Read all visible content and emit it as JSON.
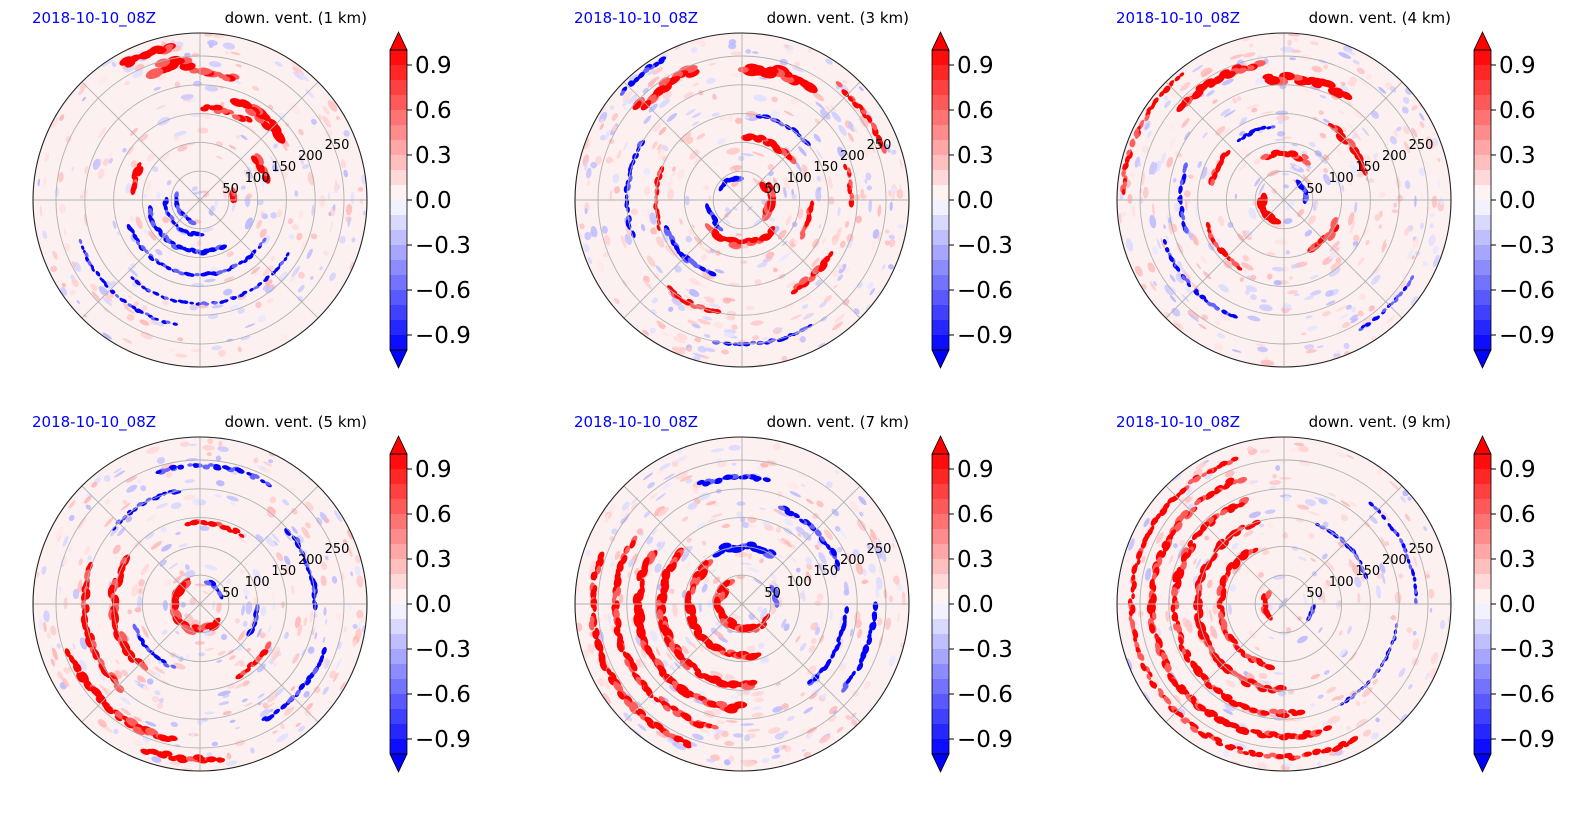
{
  "figure": {
    "colors": {
      "date_label": "#0000ff",
      "title": "#000000",
      "positive": "#ff0000",
      "negative": "#0000ff",
      "grid": "#b0b0b0"
    }
  },
  "chart_data": [
    {
      "type": "heatmap",
      "projection": "polar",
      "date_label": "2018-10-10_08Z",
      "title": "down. vent. (1 km)",
      "radial_ticks": [
        "50",
        "100",
        "150",
        "200",
        "250"
      ],
      "colorbar": {
        "min": -1.0,
        "max": 1.0,
        "levels": 20,
        "extend": "both",
        "cmap": "bwr",
        "ticks": [
          "0.9",
          "0.6",
          "0.3",
          "0.0",
          "−0.3",
          "−0.6",
          "−0.9"
        ]
      },
      "features": {
        "positive_arcs": [
          [
            2,
            15,
            60,
            8
          ],
          [
            20,
            40,
            120,
            10
          ],
          [
            40,
            70,
            180,
            14
          ],
          [
            75,
            95,
            220,
            10
          ],
          [
            95,
            110,
            240,
            14
          ],
          [
            100,
            120,
            270,
            10
          ],
          [
            150,
            175,
            120,
            8
          ],
          [
            110,
            130,
            300,
            10
          ],
          [
            60,
            90,
            160,
            8
          ]
        ],
        "negative_arcs": [
          [
            170,
            260,
            40,
            6
          ],
          [
            180,
            280,
            60,
            5
          ],
          [
            190,
            300,
            90,
            6
          ],
          [
            200,
            330,
            130,
            4
          ],
          [
            230,
            330,
            180,
            3
          ],
          [
            200,
            260,
            220,
            3
          ]
        ],
        "noise": 0.35
      }
    },
    {
      "type": "heatmap",
      "projection": "polar",
      "date_label": "2018-10-10_08Z",
      "title": "down. vent. (3 km)",
      "radial_ticks": [
        "50",
        "100",
        "150",
        "200",
        "250"
      ],
      "colorbar": {
        "min": -1.0,
        "max": 1.0,
        "levels": 20,
        "extend": "both",
        "cmap": "bwr",
        "ticks": [
          "0.9",
          "0.6",
          "0.3",
          "0.0",
          "−0.3",
          "−0.6",
          "−0.9"
        ]
      },
      "features": {
        "positive_arcs": [
          [
            330,
            40,
            50,
            12
          ],
          [
            220,
            320,
            75,
            10
          ],
          [
            40,
            90,
            110,
            8
          ],
          [
            330,
            360,
            120,
            6
          ],
          [
            300,
            330,
            180,
            8
          ],
          [
            0,
            20,
            190,
            6
          ],
          [
            60,
            90,
            230,
            14
          ],
          [
            110,
            140,
            240,
            12
          ],
          [
            160,
            200,
            150,
            5
          ],
          [
            230,
            260,
            200,
            6
          ],
          [
            20,
            50,
            260,
            6
          ]
        ],
        "negative_arcs": [
          [
            100,
            160,
            40,
            8
          ],
          [
            190,
            240,
            60,
            6
          ],
          [
            200,
            250,
            140,
            6
          ],
          [
            150,
            200,
            200,
            5
          ],
          [
            40,
            80,
            150,
            4
          ],
          [
            260,
            300,
            250,
            4
          ],
          [
            120,
            140,
            280,
            5
          ]
        ],
        "noise": 0.45
      }
    },
    {
      "type": "heatmap",
      "projection": "polar",
      "date_label": "2018-10-10_08Z",
      "title": "down. vent. (4 km)",
      "radial_ticks": [
        "50",
        "100",
        "150",
        "200",
        "250"
      ],
      "colorbar": {
        "min": -1.0,
        "max": 1.0,
        "levels": 20,
        "extend": "both",
        "cmap": "bwr",
        "ticks": [
          "0.9",
          "0.6",
          "0.3",
          "0.0",
          "−0.3",
          "−0.6",
          "−0.9"
        ]
      },
      "features": {
        "positive_arcs": [
          [
            180,
            260,
            40,
            10
          ],
          [
            60,
            120,
            80,
            8
          ],
          [
            300,
            340,
            100,
            10
          ],
          [
            20,
            60,
            150,
            8
          ],
          [
            60,
            100,
            210,
            12
          ],
          [
            100,
            140,
            240,
            10
          ],
          [
            140,
            170,
            130,
            6
          ],
          [
            200,
            240,
            140,
            6
          ],
          [
            130,
            180,
            280,
            5
          ]
        ],
        "negative_arcs": [
          [
            0,
            60,
            40,
            8
          ],
          [
            160,
            200,
            180,
            5
          ],
          [
            200,
            250,
            220,
            4
          ],
          [
            100,
            130,
            130,
            4
          ],
          [
            300,
            330,
            260,
            3
          ]
        ],
        "noise": 0.45
      }
    },
    {
      "type": "heatmap",
      "projection": "polar",
      "date_label": "2018-10-10_08Z",
      "title": "down. vent. (5 km)",
      "radial_ticks": [
        "50",
        "100",
        "150",
        "200",
        "250"
      ],
      "colorbar": {
        "min": -1.0,
        "max": 1.0,
        "levels": 20,
        "extend": "both",
        "cmap": "bwr",
        "ticks": [
          "0.9",
          "0.6",
          "0.3",
          "0.0",
          "−0.3",
          "−0.6",
          "−0.9"
        ]
      },
      "features": {
        "positive_arcs": [
          [
            120,
            320,
            45,
            10
          ],
          [
            150,
            230,
            150,
            10
          ],
          [
            160,
            230,
            200,
            8
          ],
          [
            200,
            260,
            240,
            10
          ],
          [
            250,
            280,
            270,
            8
          ],
          [
            60,
            100,
            140,
            6
          ],
          [
            300,
            330,
            140,
            6
          ]
        ],
        "negative_arcs": [
          [
            20,
            80,
            40,
            6
          ],
          [
            330,
            360,
            100,
            5
          ],
          [
            0,
            40,
            200,
            6
          ],
          [
            300,
            340,
            230,
            5
          ],
          [
            60,
            110,
            240,
            5
          ],
          [
            100,
            140,
            200,
            4
          ],
          [
            200,
            250,
            120,
            4
          ]
        ],
        "noise": 0.4
      }
    },
    {
      "type": "heatmap",
      "projection": "polar",
      "date_label": "2018-10-10_08Z",
      "title": "down. vent. (7 km)",
      "radial_ticks": [
        "50",
        "100",
        "150",
        "200",
        "250"
      ],
      "colorbar": {
        "min": -1.0,
        "max": 1.0,
        "levels": 20,
        "extend": "both",
        "cmap": "bwr",
        "ticks": [
          "0.9",
          "0.6",
          "0.3",
          "0.0",
          "−0.3",
          "−0.6",
          "−0.9"
        ]
      },
      "features": {
        "positive_arcs": [
          [
            120,
            300,
            40,
            12
          ],
          [
            130,
            290,
            90,
            10
          ],
          [
            140,
            280,
            140,
            10
          ],
          [
            150,
            270,
            180,
            10
          ],
          [
            150,
            260,
            220,
            8
          ],
          [
            160,
            250,
            260,
            8
          ],
          [
            300,
            340,
            50,
            6
          ]
        ],
        "negative_arcs": [
          [
            60,
            120,
            100,
            10
          ],
          [
            20,
            70,
            180,
            6
          ],
          [
            310,
            360,
            180,
            5
          ],
          [
            320,
            360,
            230,
            6
          ],
          [
            0,
            30,
            60,
            6
          ],
          [
            80,
            110,
            220,
            6
          ]
        ],
        "noise": 0.45
      }
    },
    {
      "type": "heatmap",
      "projection": "polar",
      "date_label": "2018-10-10_08Z",
      "title": "down. vent. (9 km)",
      "radial_ticks": [
        "50",
        "100",
        "150",
        "200",
        "250"
      ],
      "colorbar": {
        "min": -1.0,
        "max": 1.0,
        "levels": 20,
        "extend": "both",
        "cmap": "bwr",
        "ticks": [
          "0.9",
          "0.6",
          "0.3",
          "0.0",
          "−0.3",
          "−0.6",
          "−0.9"
        ]
      },
      "features": {
        "positive_arcs": [
          [
            120,
            260,
            110,
            8
          ],
          [
            110,
            270,
            150,
            8
          ],
          [
            110,
            280,
            190,
            8
          ],
          [
            110,
            290,
            230,
            8
          ],
          [
            110,
            300,
            265,
            6
          ],
          [
            150,
            230,
            35,
            8
          ]
        ],
        "negative_arcs": [
          [
            330,
            360,
            50,
            5
          ],
          [
            20,
            70,
            150,
            4
          ],
          [
            300,
            350,
            200,
            3
          ],
          [
            0,
            50,
            230,
            3
          ]
        ],
        "noise": 0.3
      }
    }
  ]
}
